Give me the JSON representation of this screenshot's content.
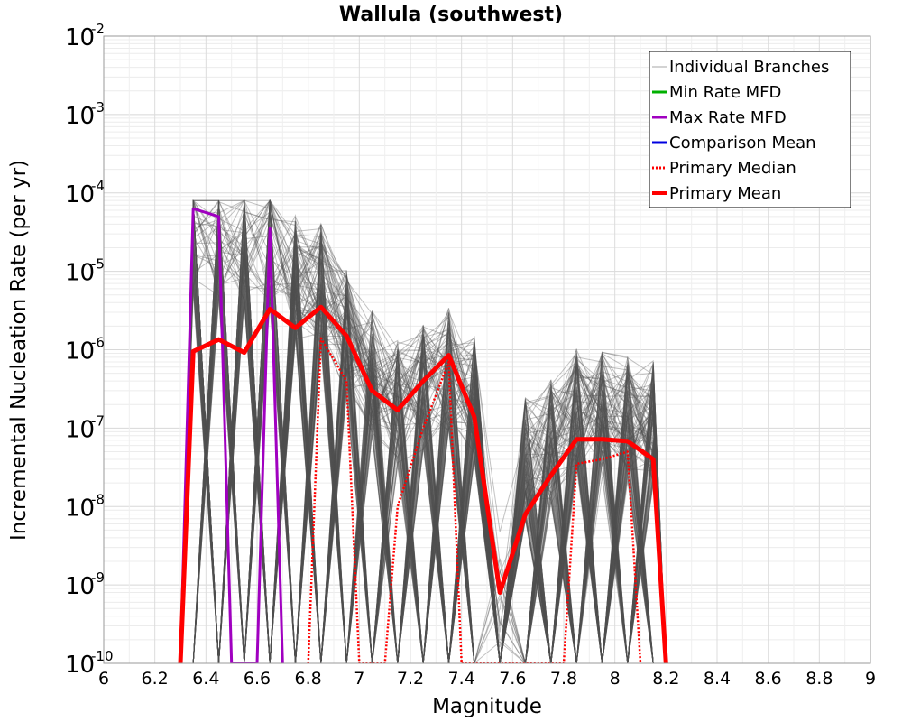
{
  "chart_data": {
    "type": "line",
    "title": "Wallula (southwest)",
    "xlabel": "Magnitude",
    "ylabel": "Incremental Nucleation Rate (per yr)",
    "xlim": [
      6,
      9
    ],
    "ylim": [
      1e-10,
      0.01
    ],
    "yscale": "log",
    "grid": true,
    "legend_position": "top-right",
    "xticks": [
      "6",
      "6.2",
      "6.4",
      "6.6",
      "6.8",
      "7",
      "7.2",
      "7.4",
      "7.6",
      "7.8",
      "8",
      "8.2",
      "8.4",
      "8.6",
      "8.8",
      "9"
    ],
    "yticks": [
      {
        "base": "10",
        "exp": "-10"
      },
      {
        "base": "10",
        "exp": "-9"
      },
      {
        "base": "10",
        "exp": "-8"
      },
      {
        "base": "10",
        "exp": "-7"
      },
      {
        "base": "10",
        "exp": "-6"
      },
      {
        "base": "10",
        "exp": "-5"
      },
      {
        "base": "10",
        "exp": "-4"
      },
      {
        "base": "10",
        "exp": "-3"
      },
      {
        "base": "10",
        "exp": "-2"
      }
    ],
    "series": [
      {
        "name": "Individual Branches",
        "color": "#505050",
        "style": "thin",
        "description_only": true
      },
      {
        "name": "Min Rate MFD",
        "color": "#00b000",
        "style": "solid",
        "x": [],
        "y": []
      },
      {
        "name": "Max Rate MFD",
        "color": "#a000c0",
        "style": "solid",
        "x": [
          6.3,
          6.35,
          6.45,
          6.5,
          6.6,
          6.65,
          6.7
        ],
        "y": [
          1e-10,
          6.3e-05,
          5e-05,
          1e-10,
          1e-10,
          3.5e-05,
          1e-10
        ]
      },
      {
        "name": "Comparison Mean",
        "color": "#0000e0",
        "style": "solid",
        "x": [],
        "y": []
      },
      {
        "name": "Primary Median",
        "color": "#ff0000",
        "style": "dotted",
        "x": [
          6.8,
          6.85,
          6.95,
          7.0,
          7.1,
          7.15,
          7.25,
          7.35,
          7.4,
          7.8,
          7.85,
          7.95,
          8.05,
          8.1
        ],
        "y": [
          1e-10,
          1.4e-06,
          4e-07,
          1e-10,
          1e-10,
          1e-08,
          1e-07,
          7e-07,
          1e-10,
          1e-10,
          3.5e-08,
          4e-08,
          5e-08,
          1e-10
        ]
      },
      {
        "name": "Primary Mean",
        "color": "#ff0000",
        "style": "thick",
        "x": [
          6.3,
          6.35,
          6.45,
          6.55,
          6.65,
          6.75,
          6.85,
          6.95,
          7.05,
          7.15,
          7.25,
          7.35,
          7.45,
          7.55,
          7.65,
          7.75,
          7.85,
          7.95,
          8.05,
          8.15,
          8.2
        ],
        "y": [
          1e-10,
          9.5e-07,
          1.35e-06,
          9.2e-07,
          3.3e-06,
          1.9e-06,
          3.5e-06,
          1.5e-06,
          3e-07,
          1.7e-07,
          4e-07,
          8.5e-07,
          1.4e-07,
          8e-10,
          8e-09,
          2.5e-08,
          7.2e-08,
          7.2e-08,
          6.8e-08,
          4e-08,
          1e-10
        ]
      }
    ]
  }
}
